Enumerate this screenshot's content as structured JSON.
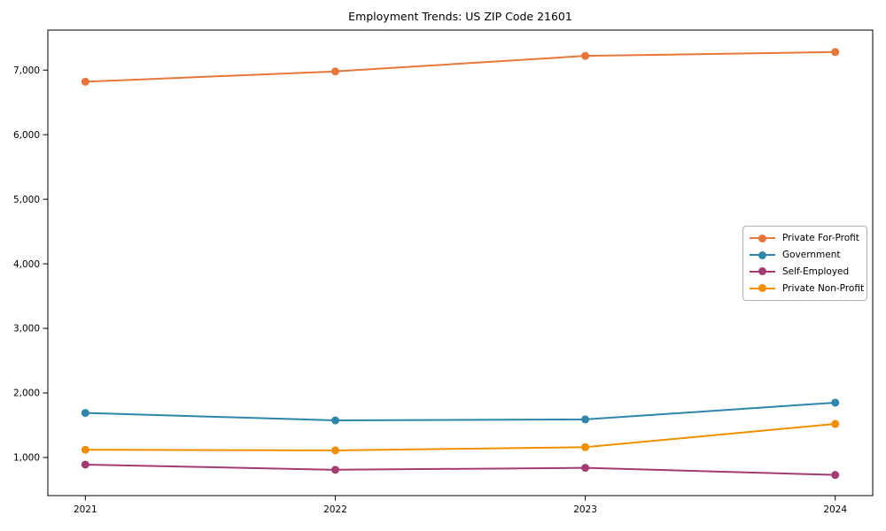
{
  "title": "Employment Trends: US ZIP Code 21601",
  "chart_data": {
    "type": "line",
    "title": "Employment Trends: US ZIP Code 21601",
    "x": [
      2021,
      2022,
      2023,
      2024
    ],
    "x_tick_labels": [
      "2021",
      "2022",
      "2023",
      "2024"
    ],
    "series": [
      {
        "name": "Private For-Profit",
        "color": "#E8763B",
        "values": [
          6820,
          6980,
          7220,
          7280
        ]
      },
      {
        "name": "Government",
        "color": "#2E86AB",
        "values": [
          1690,
          1575,
          1590,
          1850
        ]
      },
      {
        "name": "Self-Employed",
        "color": "#A23B72",
        "values": [
          890,
          810,
          840,
          730
        ]
      },
      {
        "name": "Private Non-Profit",
        "color": "#F18F01",
        "values": [
          1120,
          1110,
          1160,
          1520
        ]
      }
    ],
    "yticks": [
      1000,
      2000,
      3000,
      4000,
      5000,
      6000,
      7000
    ],
    "ytick_labels": [
      "1,000",
      "2,000",
      "3,000",
      "4,000",
      "5,000",
      "6,000",
      "7,000"
    ],
    "xlim": [
      2020.85,
      2024.15
    ],
    "ylim": [
      410,
      7620
    ],
    "grid": false,
    "legend_position": "center-right",
    "marker": "o",
    "line_width": 2,
    "marker_radius": 4.5,
    "axis_color": "#000000",
    "background": "#ffffff"
  }
}
